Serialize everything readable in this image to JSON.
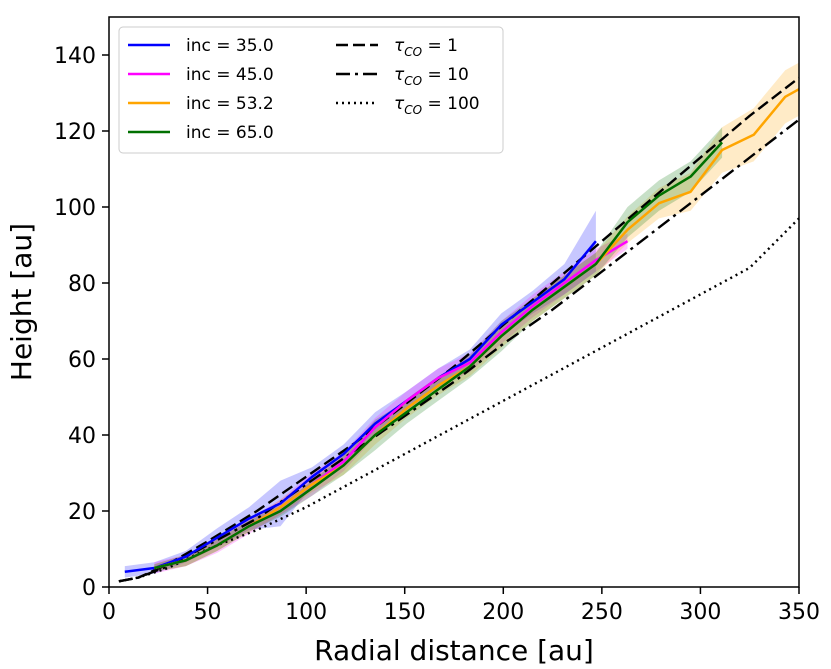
{
  "chart_data": {
    "type": "line",
    "xlabel": "Radial distance [au]",
    "ylabel": "Height [au]",
    "xlim": [
      0,
      350
    ],
    "ylim": [
      0,
      150
    ],
    "xticks": [
      "0",
      "50",
      "100",
      "150",
      "200",
      "250",
      "300",
      "350"
    ],
    "yticks": [
      "0",
      "20",
      "40",
      "60",
      "80",
      "100",
      "120",
      "140"
    ],
    "grid": false,
    "legend_position": "top-left",
    "series": [
      {
        "name": "inc = 35.0",
        "color": "#0000ff",
        "style": "solid",
        "x": [
          8,
          23,
          39,
          55,
          71,
          87,
          103,
          119,
          135,
          151,
          167,
          183,
          199,
          215,
          231,
          247
        ],
        "y": [
          4,
          5,
          8,
          13,
          18,
          22,
          29,
          35,
          43,
          49,
          55,
          60,
          69,
          75,
          81,
          91
        ],
        "band": [
          1.5,
          1.5,
          1.5,
          2.5,
          3,
          6,
          2.5,
          2.5,
          3,
          2.5,
          2.5,
          2.5,
          3,
          3,
          4,
          8
        ]
      },
      {
        "name": "inc = 45.0",
        "color": "#ff00ff",
        "style": "solid",
        "x": [
          23,
          39,
          55,
          71,
          87,
          103,
          119,
          135,
          151,
          167,
          183,
          199,
          215,
          231,
          247,
          263
        ],
        "y": [
          5,
          7,
          11,
          16,
          21,
          27,
          33,
          42,
          49,
          55,
          59,
          67,
          74,
          80,
          86,
          91
        ],
        "band": [
          1.5,
          1.5,
          2,
          2,
          2,
          3,
          2.5,
          2.5,
          2.5,
          2.5,
          2.5,
          3,
          3,
          3,
          3,
          2
        ]
      },
      {
        "name": "inc = 53.2",
        "color": "#ffa500",
        "style": "solid",
        "x": [
          23,
          39,
          55,
          71,
          87,
          103,
          119,
          135,
          151,
          167,
          183,
          199,
          215,
          231,
          247,
          263,
          279,
          295,
          311,
          327,
          343,
          350
        ],
        "y": [
          5,
          7,
          11,
          16,
          21,
          27,
          32,
          40,
          47,
          53,
          58,
          66,
          73,
          79,
          85,
          94,
          101,
          104,
          115,
          119,
          129,
          131
        ],
        "band": [
          1,
          1.5,
          1.5,
          1.5,
          2,
          2,
          2.5,
          2.5,
          2.5,
          2.5,
          2.5,
          3,
          3,
          3,
          3,
          3.5,
          4,
          5,
          6,
          7,
          7,
          7
        ]
      },
      {
        "name": "inc = 65.0",
        "color": "#007000",
        "style": "solid",
        "x": [
          23,
          39,
          55,
          71,
          87,
          103,
          119,
          135,
          151,
          167,
          183,
          199,
          215,
          231,
          247,
          263,
          279,
          295,
          311
        ],
        "y": [
          5,
          7,
          11,
          16,
          20,
          26,
          32,
          40,
          46,
          52,
          58,
          66,
          73,
          79,
          85,
          96,
          103,
          108,
          117
        ],
        "band": [
          1,
          1.5,
          1.5,
          1.5,
          1.5,
          2,
          2.5,
          4,
          3,
          3,
          3,
          4,
          3,
          3,
          3,
          4,
          4,
          4,
          4
        ]
      },
      {
        "name": "τ_CO = 1",
        "color": "#000000",
        "style": "dashed",
        "x": [
          5,
          15,
          30,
          50,
          75,
          100,
          125,
          150,
          175,
          200,
          225,
          250,
          275,
          300,
          325,
          350
        ],
        "y": [
          1.5,
          2.5,
          6,
          12,
          20,
          29,
          38,
          48,
          58,
          69,
          80,
          91,
          102,
          113,
          124,
          134
        ]
      },
      {
        "name": "τ_CO = 10",
        "color": "#000000",
        "style": "dashdot",
        "x": [
          5,
          15,
          30,
          50,
          75,
          100,
          125,
          150,
          175,
          200,
          225,
          250,
          275,
          300,
          325,
          350
        ],
        "y": [
          1.5,
          2.5,
          5.5,
          11,
          18,
          27,
          36,
          45,
          54,
          64,
          73,
          83,
          93,
          103,
          113,
          123
        ]
      },
      {
        "name": "τ_CO = 100",
        "color": "#000000",
        "style": "dotted",
        "x": [
          5,
          15,
          30,
          50,
          75,
          100,
          125,
          150,
          175,
          200,
          225,
          250,
          275,
          300,
          325,
          350
        ],
        "y": [
          1.5,
          2.5,
          5,
          10,
          15,
          21,
          28,
          35,
          42,
          49,
          56,
          63,
          70,
          77,
          84,
          97
        ]
      }
    ]
  }
}
